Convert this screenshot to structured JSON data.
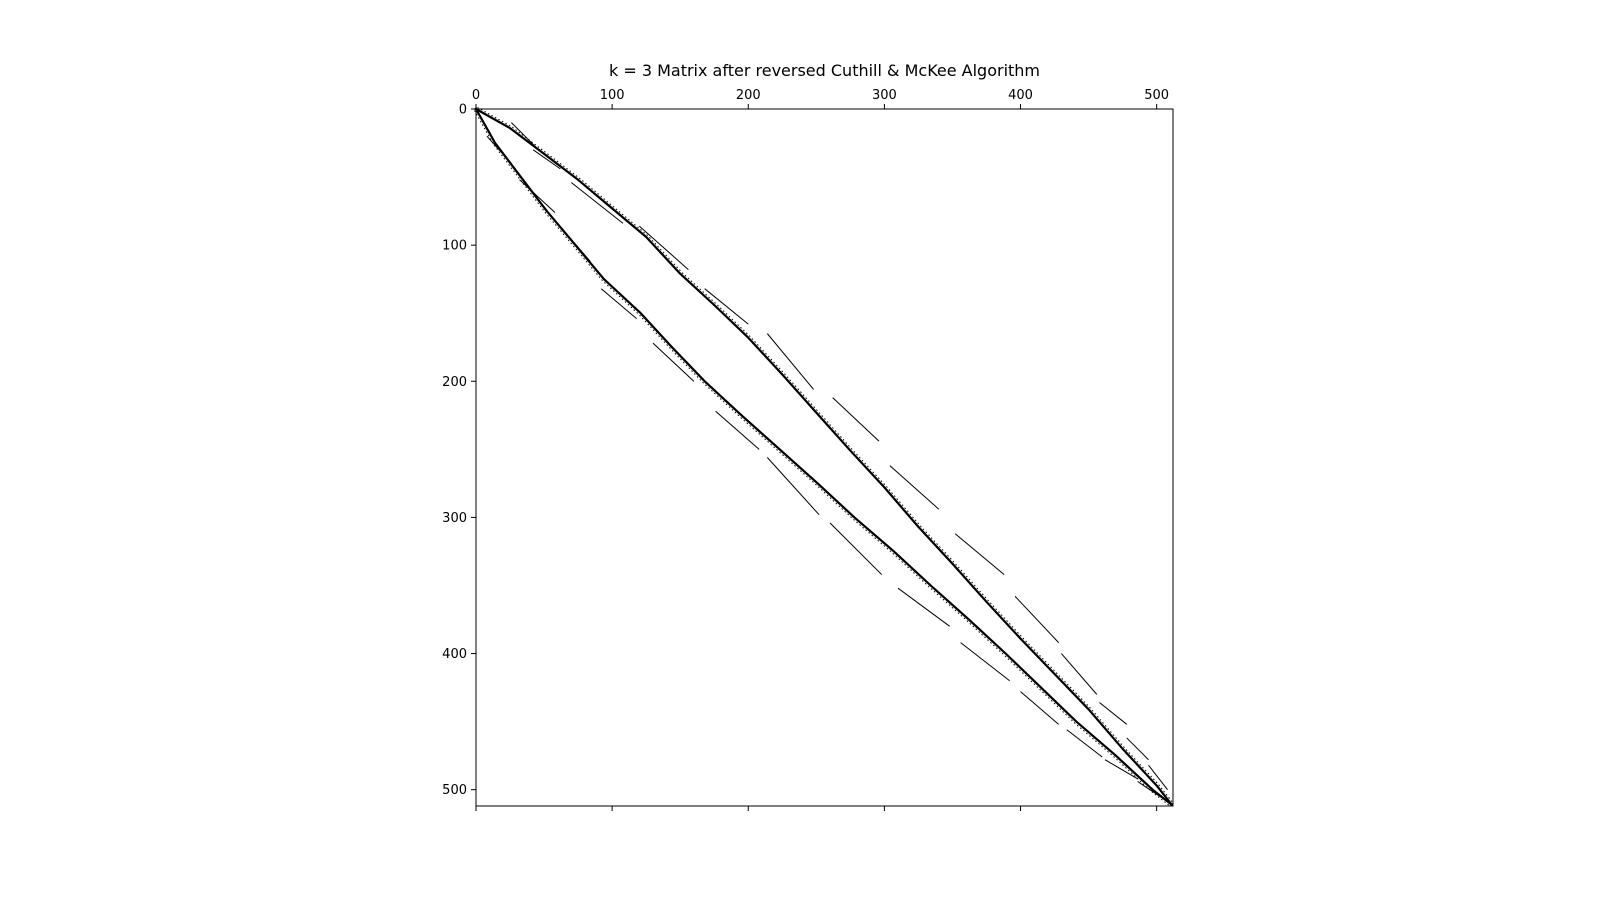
{
  "chart_data": {
    "type": "spy",
    "title": "k = 3 Matrix after reversed Cuthill & McKee Algorithm",
    "xlabel": "",
    "ylabel": "",
    "matrix_size": 512,
    "xlim": [
      0,
      512
    ],
    "ylim": [
      512,
      0
    ],
    "x_ticks": [
      0,
      100,
      200,
      300,
      400,
      500
    ],
    "y_ticks": [
      0,
      100,
      200,
      300,
      400,
      500
    ],
    "x_axis_position": "top",
    "grid": false,
    "marker_color": "#000000",
    "description_points": {
      "upper_band": [
        [
          0,
          0
        ],
        [
          25,
          14
        ],
        [
          50,
          33
        ],
        [
          75,
          52
        ],
        [
          100,
          73
        ],
        [
          125,
          94
        ],
        [
          150,
          121
        ],
        [
          175,
          144
        ],
        [
          200,
          168
        ],
        [
          225,
          195
        ],
        [
          250,
          223
        ],
        [
          275,
          251
        ],
        [
          300,
          278
        ],
        [
          325,
          307
        ],
        [
          350,
          334
        ],
        [
          375,
          362
        ],
        [
          400,
          389
        ],
        [
          425,
          415
        ],
        [
          450,
          441
        ],
        [
          475,
          470
        ],
        [
          500,
          497
        ],
        [
          511,
          511
        ]
      ],
      "lower_band": [
        [
          0,
          0
        ],
        [
          14,
          25
        ],
        [
          33,
          50
        ],
        [
          52,
          75
        ],
        [
          73,
          100
        ],
        [
          94,
          125
        ],
        [
          121,
          150
        ],
        [
          144,
          175
        ],
        [
          168,
          200
        ],
        [
          195,
          225
        ],
        [
          223,
          250
        ],
        [
          251,
          275
        ],
        [
          278,
          300
        ],
        [
          307,
          325
        ],
        [
          334,
          350
        ],
        [
          362,
          375
        ],
        [
          389,
          400
        ],
        [
          415,
          425
        ],
        [
          441,
          450
        ],
        [
          470,
          475
        ],
        [
          497,
          500
        ],
        [
          511,
          511
        ]
      ],
      "dashes": [
        [
          [
            26,
            10
          ],
          [
            46,
            30
          ]
        ],
        [
          [
            42,
            30
          ],
          [
            62,
            44
          ]
        ],
        [
          [
            70,
            54
          ],
          [
            108,
            84
          ]
        ],
        [
          [
            120,
            86
          ],
          [
            156,
            118
          ]
        ],
        [
          [
            168,
            132
          ],
          [
            200,
            158
          ]
        ],
        [
          [
            214,
            165
          ],
          [
            248,
            206
          ]
        ],
        [
          [
            262,
            212
          ],
          [
            296,
            244
          ]
        ],
        [
          [
            304,
            262
          ],
          [
            340,
            294
          ]
        ],
        [
          [
            352,
            312
          ],
          [
            388,
            342
          ]
        ],
        [
          [
            396,
            358
          ],
          [
            428,
            392
          ]
        ],
        [
          [
            430,
            400
          ],
          [
            456,
            430
          ]
        ],
        [
          [
            458,
            436
          ],
          [
            478,
            452
          ]
        ],
        [
          [
            478,
            462
          ],
          [
            494,
            478
          ]
        ],
        [
          [
            494,
            482
          ],
          [
            508,
            500
          ]
        ],
        [
          [
            8,
            20
          ],
          [
            26,
            40
          ]
        ],
        [
          [
            32,
            52
          ],
          [
            58,
            76
          ]
        ],
        [
          [
            58,
            82
          ],
          [
            84,
            112
          ]
        ],
        [
          [
            92,
            132
          ],
          [
            118,
            154
          ]
        ],
        [
          [
            130,
            172
          ],
          [
            160,
            200
          ]
        ],
        [
          [
            176,
            222
          ],
          [
            208,
            250
          ]
        ],
        [
          [
            214,
            256
          ],
          [
            252,
            298
          ]
        ],
        [
          [
            260,
            304
          ],
          [
            298,
            342
          ]
        ],
        [
          [
            310,
            352
          ],
          [
            348,
            380
          ]
        ],
        [
          [
            356,
            392
          ],
          [
            392,
            420
          ]
        ],
        [
          [
            400,
            428
          ],
          [
            428,
            452
          ]
        ],
        [
          [
            434,
            456
          ],
          [
            460,
            476
          ]
        ],
        [
          [
            462,
            478
          ],
          [
            486,
            492
          ]
        ],
        [
          [
            486,
            494
          ],
          [
            504,
            506
          ]
        ]
      ]
    }
  }
}
